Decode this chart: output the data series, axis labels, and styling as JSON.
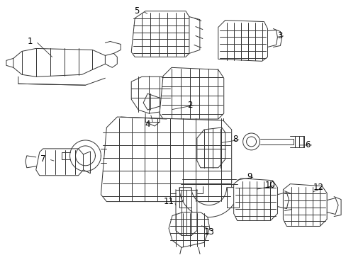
{
  "background_color": "#ffffff",
  "line_color": "#333333",
  "label_color": "#000000",
  "figsize": [
    4.89,
    3.6
  ],
  "dpi": 100,
  "lw": 0.7,
  "label_fontsize": 8.5
}
